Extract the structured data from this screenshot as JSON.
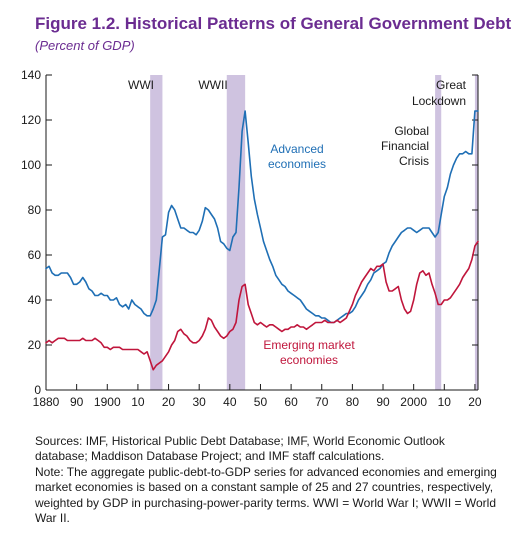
{
  "figure": {
    "title": "Figure 1.2. Historical Patterns of General Government Debt",
    "subtitle": "(Percent of GDP)"
  },
  "chart_data": {
    "type": "line",
    "title": "Figure 1.2. Historical Patterns of General Government Debt",
    "ylabel": "(Percent of GDP)",
    "xlim": [
      1880,
      2021
    ],
    "ylim": [
      0,
      140
    ],
    "y_ticks": [
      0,
      20,
      40,
      60,
      80,
      100,
      120,
      140
    ],
    "x_ticks": [
      1880,
      1890,
      1900,
      1910,
      1920,
      1930,
      1940,
      1950,
      1960,
      1970,
      1980,
      1990,
      2000,
      2010,
      2020
    ],
    "x_tick_labels": [
      "1880",
      "90",
      "1900",
      "10",
      "20",
      "30",
      "40",
      "50",
      "60",
      "70",
      "80",
      "90",
      "2000",
      "10",
      "20"
    ],
    "grid": false,
    "colors": {
      "advanced": "#1f6fb5",
      "emerging": "#c0163c",
      "shade": "#cfc3e0",
      "title": "#6b2c91"
    },
    "shaded_periods": [
      {
        "label": "WWI",
        "start": 1914,
        "end": 1918
      },
      {
        "label": "WWII",
        "start": 1939,
        "end": 1945
      },
      {
        "label": "Global Financial Crisis",
        "start": 2007,
        "end": 2009
      },
      {
        "label": "Great Lockdown",
        "start": 2020,
        "end": 2021
      }
    ],
    "series": [
      {
        "name": "Advanced economies",
        "x": [
          1880,
          1881,
          1882,
          1883,
          1884,
          1885,
          1886,
          1887,
          1888,
          1889,
          1890,
          1891,
          1892,
          1893,
          1894,
          1895,
          1896,
          1897,
          1898,
          1899,
          1900,
          1901,
          1902,
          1903,
          1904,
          1905,
          1906,
          1907,
          1908,
          1909,
          1910,
          1911,
          1912,
          1913,
          1914,
          1915,
          1916,
          1917,
          1918,
          1919,
          1920,
          1921,
          1922,
          1923,
          1924,
          1925,
          1926,
          1927,
          1928,
          1929,
          1930,
          1931,
          1932,
          1933,
          1934,
          1935,
          1936,
          1937,
          1938,
          1939,
          1940,
          1941,
          1942,
          1943,
          1944,
          1945,
          1946,
          1947,
          1948,
          1949,
          1950,
          1951,
          1952,
          1953,
          1954,
          1955,
          1956,
          1957,
          1958,
          1959,
          1960,
          1961,
          1962,
          1963,
          1964,
          1965,
          1966,
          1967,
          1968,
          1969,
          1970,
          1971,
          1972,
          1973,
          1974,
          1975,
          1976,
          1977,
          1978,
          1979,
          1980,
          1981,
          1982,
          1983,
          1984,
          1985,
          1986,
          1987,
          1988,
          1989,
          1990,
          1991,
          1992,
          1993,
          1994,
          1995,
          1996,
          1997,
          1998,
          1999,
          2000,
          2001,
          2002,
          2003,
          2004,
          2005,
          2006,
          2007,
          2008,
          2009,
          2010,
          2011,
          2012,
          2013,
          2014,
          2015,
          2016,
          2017,
          2018,
          2019,
          2020,
          2021
        ],
        "values": [
          54,
          55,
          52,
          51,
          51,
          52,
          52,
          52,
          50,
          47,
          47,
          48,
          50,
          48,
          45,
          44,
          42,
          42,
          43,
          42,
          42,
          40,
          40,
          41,
          38,
          37,
          38,
          36,
          40,
          38,
          37,
          36,
          34,
          33,
          33,
          36,
          40,
          54,
          68,
          69,
          79,
          82,
          80,
          76,
          72,
          72,
          71,
          70,
          70,
          69,
          71,
          75,
          81,
          80,
          78,
          76,
          72,
          66,
          65,
          63,
          62,
          68,
          70,
          90,
          115,
          124,
          110,
          95,
          85,
          78,
          72,
          66,
          62,
          58,
          55,
          51,
          49,
          47,
          46,
          44,
          43,
          42,
          41,
          40,
          38,
          36,
          35,
          34,
          33,
          33,
          32,
          32,
          31,
          30,
          30,
          31,
          32,
          33,
          34,
          34,
          35,
          37,
          40,
          42,
          44,
          47,
          49,
          52,
          53,
          54,
          56,
          57,
          61,
          64,
          66,
          68,
          70,
          71,
          72,
          72,
          71,
          70,
          71,
          72,
          72,
          72,
          70,
          68,
          70,
          78,
          86,
          90,
          96,
          100,
          103,
          105,
          105,
          106,
          105,
          105,
          124,
          124
        ]
      },
      {
        "name": "Emerging market economies",
        "x": [
          1880,
          1881,
          1882,
          1883,
          1884,
          1885,
          1886,
          1887,
          1888,
          1889,
          1890,
          1891,
          1892,
          1893,
          1894,
          1895,
          1896,
          1897,
          1898,
          1899,
          1900,
          1901,
          1902,
          1903,
          1904,
          1905,
          1906,
          1907,
          1908,
          1909,
          1910,
          1911,
          1912,
          1913,
          1914,
          1915,
          1916,
          1917,
          1918,
          1919,
          1920,
          1921,
          1922,
          1923,
          1924,
          1925,
          1926,
          1927,
          1928,
          1929,
          1930,
          1931,
          1932,
          1933,
          1934,
          1935,
          1936,
          1937,
          1938,
          1939,
          1940,
          1941,
          1942,
          1943,
          1944,
          1945,
          1946,
          1947,
          1948,
          1949,
          1950,
          1951,
          1952,
          1953,
          1954,
          1955,
          1956,
          1957,
          1958,
          1959,
          1960,
          1961,
          1962,
          1963,
          1964,
          1965,
          1966,
          1967,
          1968,
          1969,
          1970,
          1971,
          1972,
          1973,
          1974,
          1975,
          1976,
          1977,
          1978,
          1979,
          1980,
          1981,
          1982,
          1983,
          1984,
          1985,
          1986,
          1987,
          1988,
          1989,
          1990,
          1991,
          1992,
          1993,
          1994,
          1995,
          1996,
          1997,
          1998,
          1999,
          2000,
          2001,
          2002,
          2003,
          2004,
          2005,
          2006,
          2007,
          2008,
          2009,
          2010,
          2011,
          2012,
          2013,
          2014,
          2015,
          2016,
          2017,
          2018,
          2019,
          2020,
          2021
        ],
        "values": [
          21,
          22,
          21,
          22,
          23,
          23,
          23,
          22,
          22,
          22,
          22,
          22,
          23,
          22,
          22,
          22,
          23,
          22,
          21,
          19,
          19,
          18,
          19,
          19,
          19,
          18,
          18,
          18,
          18,
          18,
          18,
          17,
          16,
          17,
          13,
          9,
          11,
          12,
          13,
          15,
          17,
          20,
          22,
          26,
          27,
          25,
          24,
          22,
          21,
          21,
          22,
          24,
          27,
          32,
          31,
          28,
          26,
          24,
          23,
          24,
          26,
          27,
          30,
          40,
          46,
          47,
          38,
          34,
          30,
          29,
          30,
          29,
          28,
          29,
          29,
          28,
          27,
          26,
          27,
          27,
          28,
          28,
          29,
          28,
          28,
          27,
          28,
          29,
          30,
          30,
          30,
          31,
          30,
          30,
          30,
          31,
          30,
          31,
          32,
          35,
          38,
          42,
          45,
          48,
          50,
          52,
          54,
          53,
          55,
          55,
          56,
          48,
          44,
          44,
          45,
          46,
          40,
          36,
          34,
          35,
          40,
          47,
          52,
          53,
          51,
          52,
          47,
          43,
          38,
          38,
          40,
          40,
          41,
          43,
          45,
          47,
          50,
          52,
          54,
          58,
          64,
          66
        ]
      }
    ]
  },
  "labels": {
    "advanced_line1": "Advanced",
    "advanced_line2": "economies",
    "emerging_line1": "Emerging market",
    "emerging_line2": "economies",
    "wwi": "WWI",
    "wwii": "WWII",
    "gfc_line1": "Global",
    "gfc_line2": "Financial",
    "gfc_line3": "Crisis",
    "lockdown_line1": "Great",
    "lockdown_line2": "Lockdown"
  },
  "notes": {
    "sources": "Sources: IMF, Historical Public Debt Database; IMF, World Economic Outlook database; Maddison Database Project; and IMF staff calculations.",
    "note": "Note: The aggregate public-debt-to-GDP series for advanced economies and emerging market economies is based on a constant sample of 25 and 27 countries, respectively, weighted by GDP in purchasing-power-parity terms. WWI = World War I; WWII = World War II."
  }
}
